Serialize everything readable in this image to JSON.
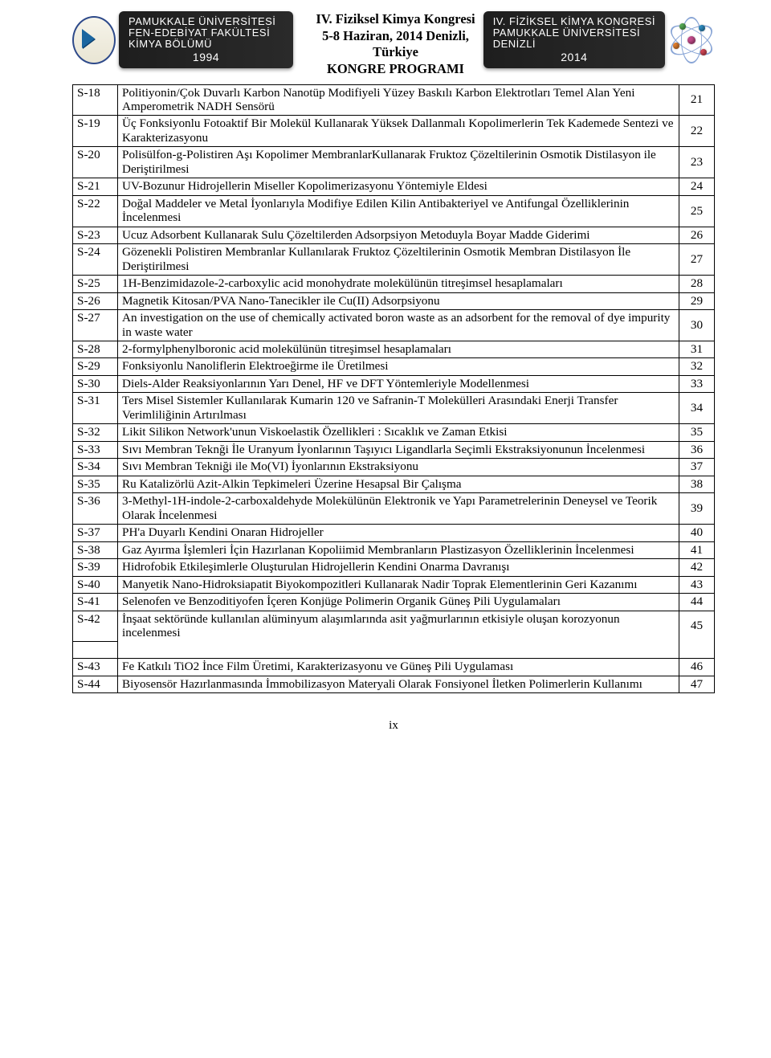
{
  "left_banner": {
    "line1": "PAMUKKALE ÜNİVERSİTESİ",
    "line2": "FEN-EDEBİYAT FAKÜLTESİ",
    "line3": "KİMYA BÖLÜMÜ",
    "year": "1994"
  },
  "right_banner": {
    "line1": "IV. FİZİKSEL KİMYA KONGRESİ",
    "line2": "PAMUKKALE ÜNİVERSİTESİ",
    "line3": "DENİZLİ",
    "year": "2014"
  },
  "center_title": {
    "line1": "IV. Fiziksel Kimya Kongresi",
    "line2": "5-8 Haziran, 2014 Denizli, Türkiye",
    "line3": "KONGRE PROGRAMI"
  },
  "rows": [
    {
      "code": "S-18",
      "desc": "Politiyonin/Çok Duvarlı Karbon Nanotüp Modifiyeli Yüzey Baskılı Karbon Elektrotları Temel Alan Yeni Amperometrik NADH Sensörü",
      "page": "21"
    },
    {
      "code": "S-19",
      "desc": "Üç Fonksiyonlu Fotoaktif Bir Molekül Kullanarak Yüksek Dallanmalı Kopolimerlerin Tek Kademede Sentezi ve Karakterizasyonu",
      "page": "22"
    },
    {
      "code": "S-20",
      "desc": "Polisülfon-g-Polistiren Aşı Kopolimer MembranlarKullanarak Fruktoz Çözeltilerinin Osmotik Distilasyon ile Deriştirilmesi",
      "page": "23"
    },
    {
      "code": "S-21",
      "desc": "UV-Bozunur Hidrojellerin Miseller Kopolimerizasyonu Yöntemiyle Eldesi",
      "page": "24"
    },
    {
      "code": "S-22",
      "desc": "Doğal Maddeler ve Metal İyonlarıyla Modifiye Edilen Kilin Antibakteriyel ve Antifungal Özelliklerinin İncelenmesi",
      "page": "25"
    },
    {
      "code": "S-23",
      "desc": "Ucuz Adsorbent Kullanarak Sulu Çözeltilerden Adsorpsiyon Metoduyla Boyar Madde Giderimi",
      "page": "26"
    },
    {
      "code": "S-24",
      "desc": "Gözenekli Polistiren Membranlar Kullanılarak Fruktoz Çözeltilerinin Osmotik Membran Distilasyon İle Deriştirilmesi",
      "page": "27"
    },
    {
      "code": "S-25",
      "desc": "1H-Benzimidazole-2-carboxylic acid monohydrate molekülünün titreşimsel hesaplamaları",
      "page": "28"
    },
    {
      "code": "S-26",
      "desc": "Magnetik Kitosan/PVA Nano-Tanecikler ile Cu(II) Adsorpsiyonu",
      "page": "29"
    },
    {
      "code": "S-27",
      "desc": "An investigation on the use of chemically activated boron waste as an adsorbent for the removal of dye impurity in waste water",
      "page": "30"
    },
    {
      "code": "S-28",
      "desc": "2-formylphenylboronic acid molekülünün titreşimsel hesaplamaları",
      "page": "31"
    },
    {
      "code": "S-29",
      "desc": "Fonksiyonlu Nanoliflerin Elektroeğirme ile Üretilmesi",
      "page": "32"
    },
    {
      "code": "S-30",
      "desc": "Diels-Alder Reaksiyonlarının Yarı Denel, HF ve DFT Yöntemleriyle Modellenmesi",
      "page": "33"
    },
    {
      "code": "S-31",
      "desc": "Ters Misel Sistemler Kullanılarak Kumarin 120 ve Safranin-T Molekülleri Arasındaki Enerji Transfer Verimliliğinin Artırılması",
      "page": "34"
    },
    {
      "code": "S-32",
      "desc": "Likit Silikon Network'unun Viskoelastik Özellikleri : Sıcaklık ve Zaman Etkisi",
      "page": "35"
    },
    {
      "code": "S-33",
      "desc": "Sıvı Membran Teknği İle Uranyum İyonlarının Taşıyıcı Ligandlarla Seçimli Ekstraksiyonunun İncelenmesi",
      "page": "36"
    },
    {
      "code": "S-34",
      "desc": "Sıvı Membran Tekniği ile Mo(VI) İyonlarının Ekstraksiyonu",
      "page": "37"
    },
    {
      "code": "S-35",
      "desc": "Ru Katalizörlü Azit-Alkin Tepkimeleri Üzerine Hesapsal Bir Çalışma",
      "page": "38"
    },
    {
      "code": "S-36",
      "desc": "3-Methyl-1H-indole-2-carboxaldehyde Molekülünün Elektronik ve Yapı Parametrelerinin Deneysel ve Teorik Olarak İncelenmesi",
      "page": "39"
    },
    {
      "code": "S-37",
      "desc": "PH'a Duyarlı Kendini Onaran Hidrojeller",
      "page": "40"
    },
    {
      "code": "S-38",
      "desc": "Gaz Ayırma İşlemleri İçin Hazırlanan Kopoliimid Membranların Plastizasyon Özelliklerinin İncelenmesi",
      "page": "41"
    },
    {
      "code": "S-39",
      "desc": "Hidrofobik Etkileşimlerle Oluşturulan Hidrojellerin Kendini Onarma Davranışı",
      "page": "42"
    },
    {
      "code": "S-40",
      "desc": "Manyetik Nano-Hidroksiapatit Biyokompozitleri Kullanarak Nadir Toprak Elementlerinin Geri Kazanımı",
      "page": "43"
    },
    {
      "code": "S-41",
      "desc": "Selenofen ve Benzoditiyofen İçeren Konjüge Polimerin Organik Güneş Pili Uygulamaları",
      "page": "44"
    },
    {
      "code": "S-42",
      "desc": "İnşaat sektöründe kullanılan alüminyum alaşımlarında asit yağmurlarının etkisiyle oluşan korozyonun incelenmesi",
      "page": "45"
    },
    {
      "code": "S-43",
      "desc": "Fe Katkılı TiO2 İnce Film Üretimi, Karakterizasyonu ve Güneş Pili Uygulaması",
      "page": "46"
    },
    {
      "code": "S-44",
      "desc": "Biyosensör Hazırlanmasında İmmobilizasyon Materyali Olarak Fonsiyonel İletken Polimerlerin Kullanımı",
      "page": "47"
    }
  ],
  "blank_after": [
    "S-42"
  ],
  "page_label": "ix"
}
